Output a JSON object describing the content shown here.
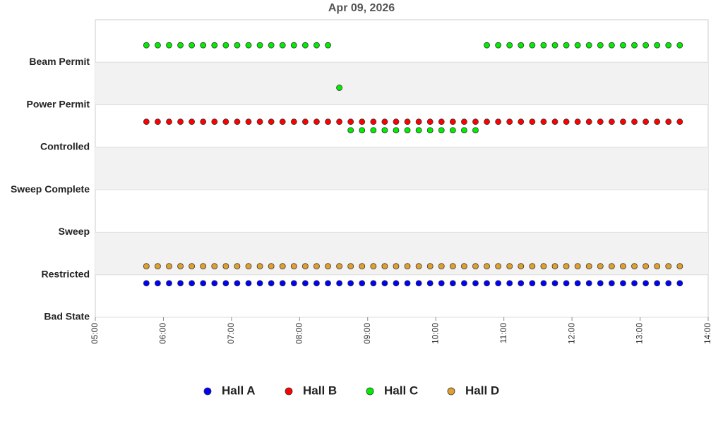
{
  "chart_data": {
    "type": "scatter",
    "title": "Apr 09, 2026",
    "x": [
      "05:45",
      "05:55",
      "06:05",
      "06:15",
      "06:25",
      "06:35",
      "06:45",
      "06:55",
      "07:05",
      "07:15",
      "07:25",
      "07:35",
      "07:45",
      "07:55",
      "08:05",
      "08:15",
      "08:25",
      "08:35",
      "08:45",
      "08:55",
      "09:05",
      "09:15",
      "09:25",
      "09:35",
      "09:45",
      "09:55",
      "10:05",
      "10:15",
      "10:25",
      "10:35",
      "10:45",
      "10:55",
      "11:05",
      "11:15",
      "11:25",
      "11:35",
      "11:45",
      "11:55",
      "12:05",
      "12:15",
      "12:25",
      "12:35",
      "12:45",
      "12:55",
      "13:05",
      "13:15",
      "13:25",
      "13:35"
    ],
    "series": [
      {
        "name": "Hall A",
        "color": "#0000ff",
        "values": [
          0.8,
          0.8,
          0.8,
          0.8,
          0.8,
          0.8,
          0.8,
          0.8,
          0.8,
          0.8,
          0.8,
          0.8,
          0.8,
          0.8,
          0.8,
          0.8,
          0.8,
          0.8,
          0.8,
          0.8,
          0.8,
          0.8,
          0.8,
          0.8,
          0.8,
          0.8,
          0.8,
          0.8,
          0.8,
          0.8,
          0.8,
          0.8,
          0.8,
          0.8,
          0.8,
          0.8,
          0.8,
          0.8,
          0.8,
          0.8,
          0.8,
          0.8,
          0.8,
          0.8,
          0.8,
          0.8,
          0.8,
          0.8
        ]
      },
      {
        "name": "Hall B",
        "color": "#ff0000",
        "values": [
          4.6,
          4.6,
          4.6,
          4.6,
          4.6,
          4.6,
          4.6,
          4.6,
          4.6,
          4.6,
          4.6,
          4.6,
          4.6,
          4.6,
          4.6,
          4.6,
          4.6,
          4.6,
          4.6,
          4.6,
          4.6,
          4.6,
          4.6,
          4.6,
          4.6,
          4.6,
          4.6,
          4.6,
          4.6,
          4.6,
          4.6,
          4.6,
          4.6,
          4.6,
          4.6,
          4.6,
          4.6,
          4.6,
          4.6,
          4.6,
          4.6,
          4.6,
          4.6,
          4.6,
          4.6,
          4.6,
          4.6,
          4.6
        ]
      },
      {
        "name": "Hall C",
        "color": "#00ee00",
        "values": [
          6.4,
          6.4,
          6.4,
          6.4,
          6.4,
          6.4,
          6.4,
          6.4,
          6.4,
          6.4,
          6.4,
          6.4,
          6.4,
          6.4,
          6.4,
          6.4,
          6.4,
          5.4,
          4.4,
          4.4,
          4.4,
          4.4,
          4.4,
          4.4,
          4.4,
          4.4,
          4.4,
          4.4,
          4.4,
          4.4,
          6.4,
          6.4,
          6.4,
          6.4,
          6.4,
          6.4,
          6.4,
          6.4,
          6.4,
          6.4,
          6.4,
          6.4,
          6.4,
          6.4,
          6.4,
          6.4,
          6.4,
          6.4
        ]
      },
      {
        "name": "Hall D",
        "color": "#e0a030",
        "values": [
          1.2,
          1.2,
          1.2,
          1.2,
          1.2,
          1.2,
          1.2,
          1.2,
          1.2,
          1.2,
          1.2,
          1.2,
          1.2,
          1.2,
          1.2,
          1.2,
          1.2,
          1.2,
          1.2,
          1.2,
          1.2,
          1.2,
          1.2,
          1.2,
          1.2,
          1.2,
          1.2,
          1.2,
          1.2,
          1.2,
          1.2,
          1.2,
          1.2,
          1.2,
          1.2,
          1.2,
          1.2,
          1.2,
          1.2,
          1.2,
          1.2,
          1.2,
          1.2,
          1.2,
          1.2,
          1.2,
          1.2,
          1.2
        ]
      }
    ],
    "xlim": [
      "05:00",
      "14:00"
    ],
    "xticks": [
      "05:00",
      "06:00",
      "07:00",
      "08:00",
      "09:00",
      "10:00",
      "11:00",
      "12:00",
      "13:00",
      "14:00"
    ],
    "ylim": [
      0,
      7
    ],
    "yticks": [
      {
        "value": 0,
        "label": "Bad State"
      },
      {
        "value": 1,
        "label": "Restricted"
      },
      {
        "value": 2,
        "label": "Sweep"
      },
      {
        "value": 3,
        "label": "Sweep Complete"
      },
      {
        "value": 4,
        "label": "Controlled"
      },
      {
        "value": 5,
        "label": "Power Permit"
      },
      {
        "value": 6,
        "label": "Beam Permit"
      }
    ],
    "grid": true,
    "bands": true,
    "legend": "bottom"
  }
}
